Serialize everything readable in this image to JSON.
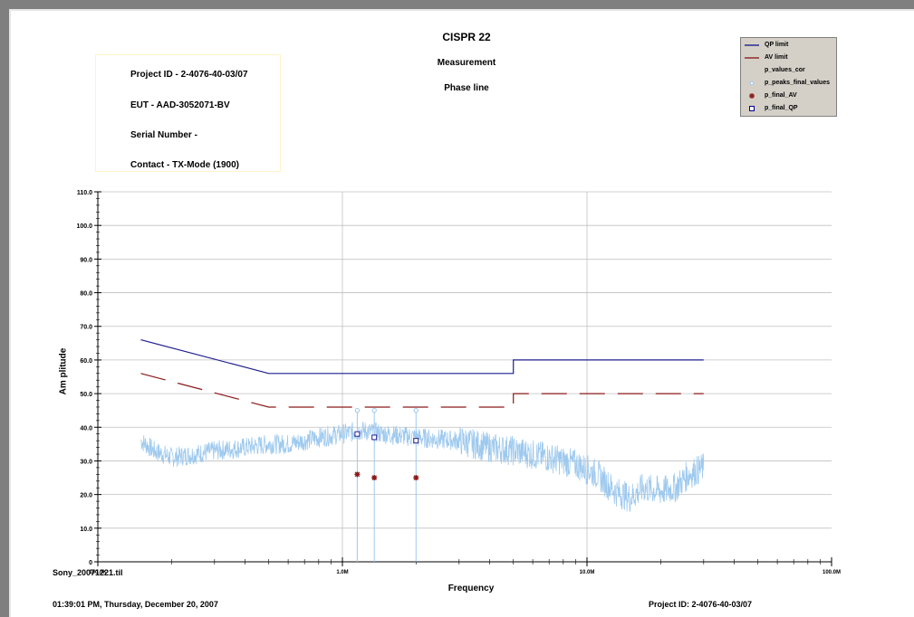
{
  "header": {
    "title": "CISPR 22",
    "subtitle": "Measurement",
    "trace": "Phase line"
  },
  "info": {
    "project": "Project ID - 2-4076-40-03/07",
    "eut": "EUT - AAD-3052071-BV",
    "serial": "Serial Number -",
    "contact": "Contact - TX-Mode (1900)"
  },
  "legend": [
    {
      "label": "QP limit",
      "symbol": "line",
      "color": "#00007f"
    },
    {
      "label": "AV limit",
      "symbol": "line",
      "color": "#7f0000"
    },
    {
      "label": "p_values_cor",
      "symbol": "none",
      "color": "#9ec9ee"
    },
    {
      "label": "p_peaks_final_values",
      "symbol": "dot",
      "color": "#9ec9ee"
    },
    {
      "label": "p_final_AV",
      "symbol": "star",
      "color": "#8b1a1a"
    },
    {
      "label": "p_final_QP",
      "symbol": "square",
      "color": "#00008b"
    }
  ],
  "footer": {
    "file": "Sony_20071221.til",
    "timestamp": "01:39:01 PM, Thursday, December 20, 2007",
    "project": "Project ID: 2-4076-40-03/07"
  },
  "colors": {
    "qp_limit": "#1f1f8f",
    "av_limit": "#8b1a1a",
    "trace": "#9ec9ee",
    "grid": "#c0c0c0"
  },
  "chart_data": {
    "type": "line",
    "xlabel": "Frequency",
    "ylabel": "Am plitude",
    "x_scale": "log",
    "xlim": [
      100000,
      100000000
    ],
    "ylim": [
      0,
      110
    ],
    "x_tick_labels": [
      "100.0K",
      "1.0M",
      "10.0M",
      "100.0M"
    ],
    "y_ticks": [
      0,
      10,
      20,
      30,
      40,
      50,
      60,
      70,
      80,
      90,
      100,
      110
    ],
    "y_tick_labels": [
      "0",
      "10.0",
      "20.0",
      "30.0",
      "40.0",
      "50.0",
      "60.0",
      "70.0",
      "80.0",
      "90.0",
      "100.0",
      "110.0"
    ],
    "grid": true,
    "legend_position": "top-right",
    "series": [
      {
        "name": "QP limit",
        "style": "solid",
        "points": [
          [
            150000,
            66
          ],
          [
            500000,
            56
          ],
          [
            5000000,
            56
          ],
          [
            5000000,
            60
          ],
          [
            30000000,
            60
          ]
        ]
      },
      {
        "name": "AV limit",
        "style": "dashed",
        "points": [
          [
            150000,
            56
          ],
          [
            500000,
            46
          ],
          [
            5000000,
            46
          ],
          [
            5000000,
            50
          ],
          [
            30000000,
            50
          ]
        ]
      },
      {
        "name": "p_values_cor",
        "style": "noise",
        "points": [
          [
            150000,
            36
          ],
          [
            170000,
            33
          ],
          [
            200000,
            31
          ],
          [
            250000,
            32
          ],
          [
            300000,
            33
          ],
          [
            400000,
            34
          ],
          [
            500000,
            35
          ],
          [
            600000,
            35
          ],
          [
            700000,
            36
          ],
          [
            800000,
            37
          ],
          [
            1000000,
            38
          ],
          [
            1200000,
            39
          ],
          [
            1500000,
            38
          ],
          [
            2000000,
            37
          ],
          [
            3000000,
            36
          ],
          [
            4000000,
            34
          ],
          [
            5000000,
            33
          ],
          [
            7000000,
            31
          ],
          [
            9000000,
            29
          ],
          [
            11000000,
            26
          ],
          [
            13000000,
            21
          ],
          [
            15000000,
            19
          ],
          [
            17000000,
            22
          ],
          [
            20000000,
            21
          ],
          [
            23000000,
            22
          ],
          [
            26000000,
            26
          ],
          [
            30000000,
            28
          ]
        ]
      },
      {
        "name": "p_peaks_final_values",
        "points": [
          [
            1150000,
            45
          ],
          [
            1350000,
            45
          ],
          [
            2000000,
            45
          ]
        ]
      },
      {
        "name": "p_final_AV",
        "points": [
          [
            1150000,
            26
          ],
          [
            1350000,
            25
          ],
          [
            2000000,
            25
          ]
        ]
      },
      {
        "name": "p_final_QP",
        "points": [
          [
            1150000,
            38
          ],
          [
            1350000,
            37
          ],
          [
            2000000,
            36
          ]
        ]
      }
    ]
  }
}
